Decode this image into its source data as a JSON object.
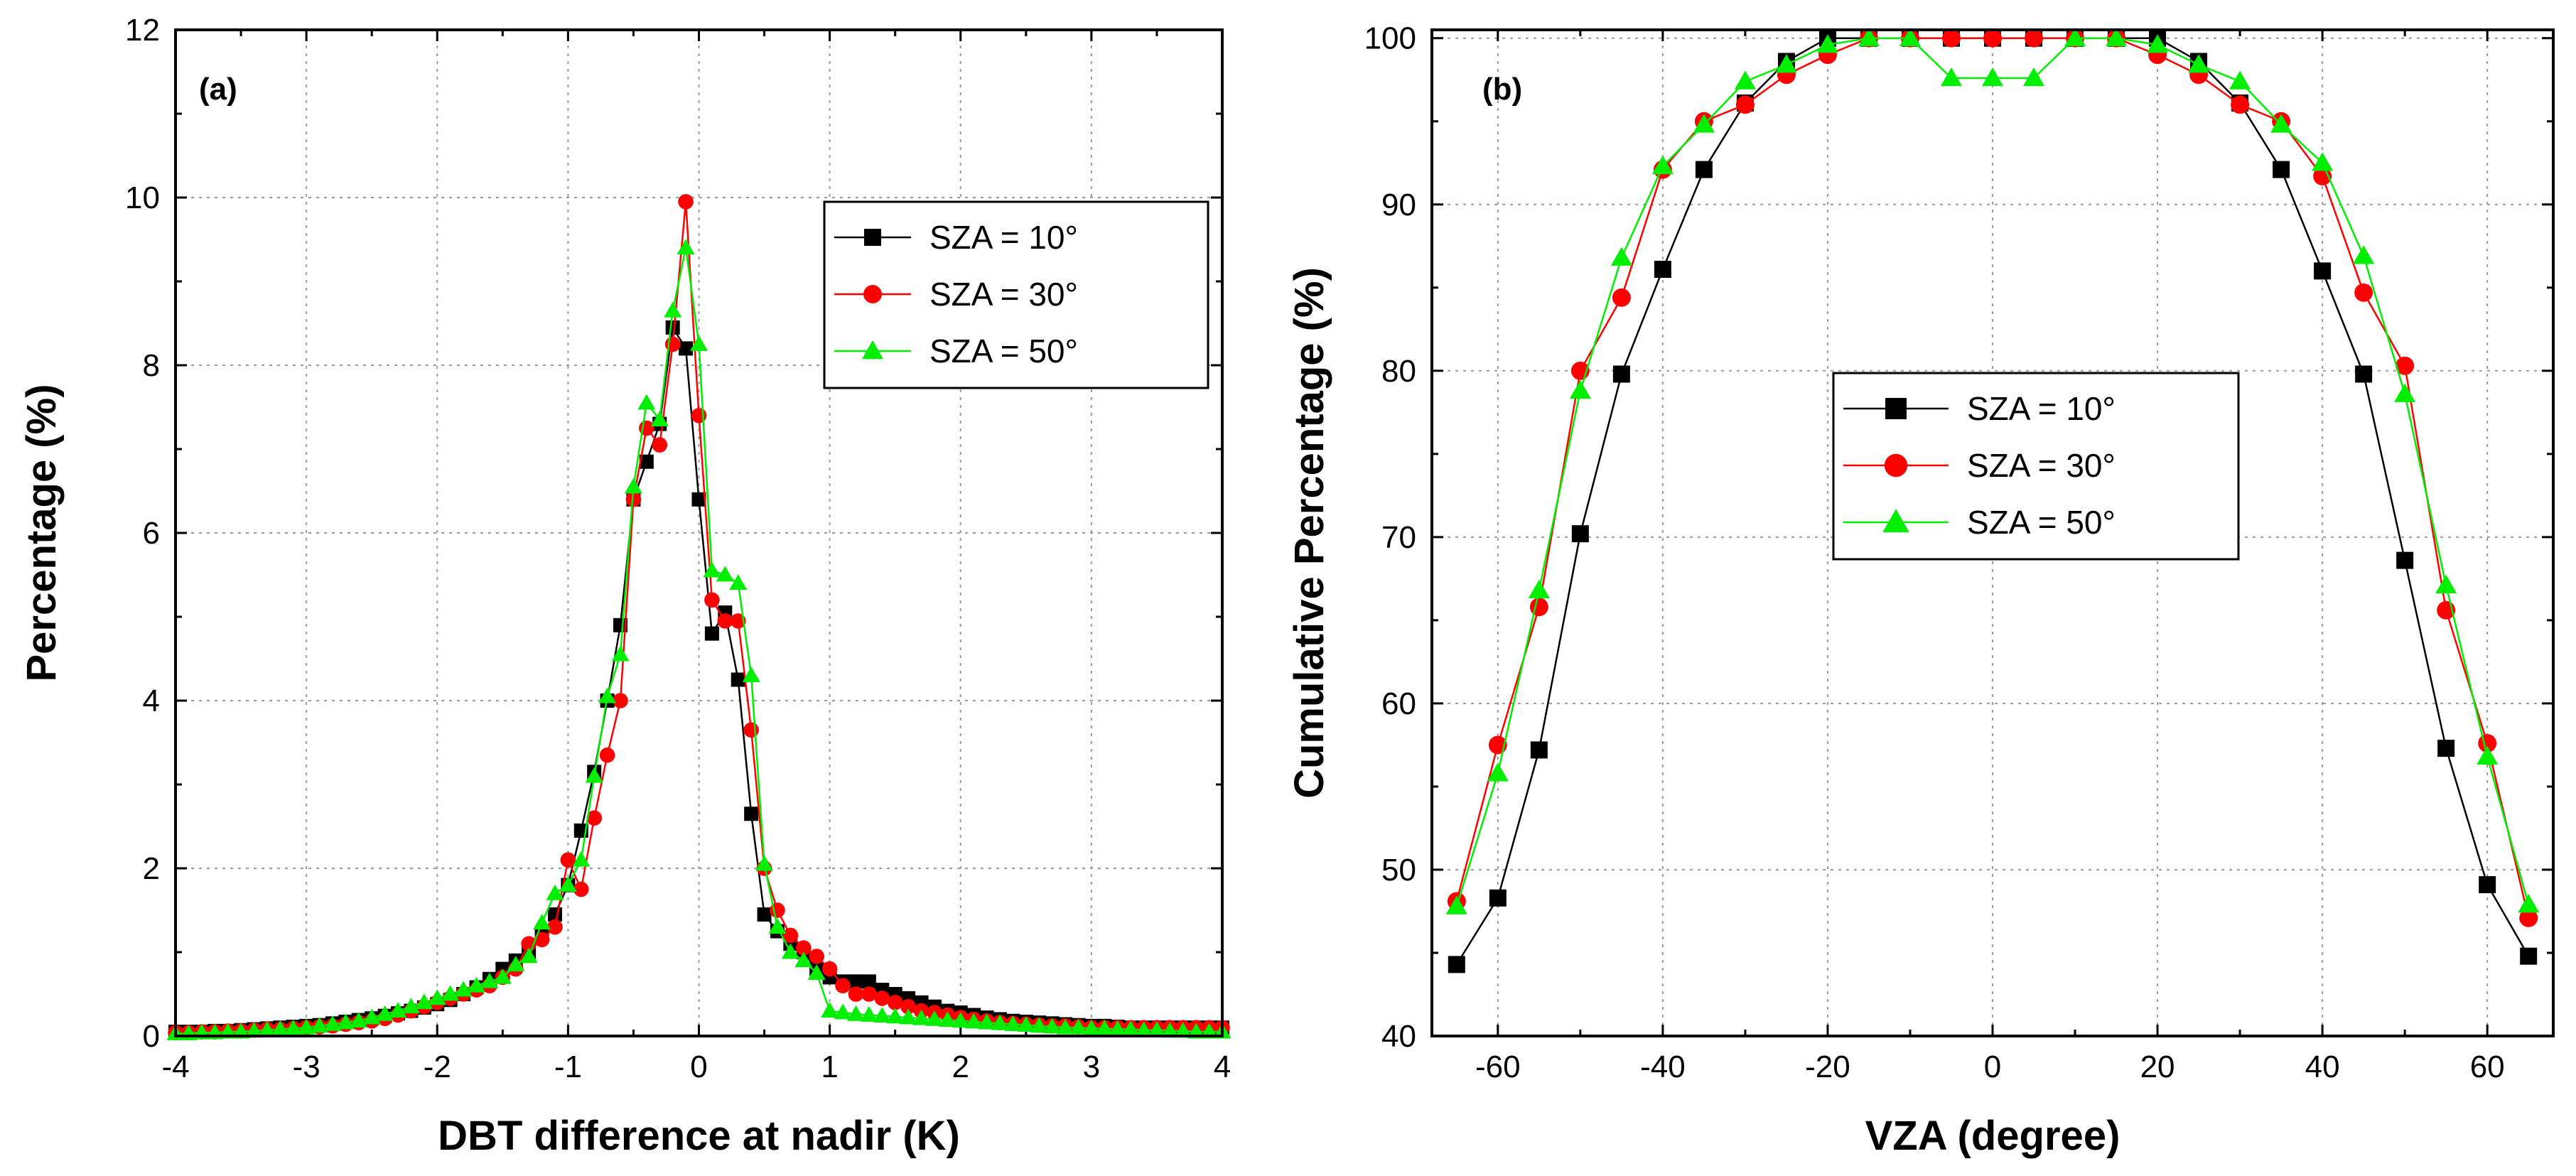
{
  "chart_data": [
    {
      "type": "line",
      "panel_label": "(a)",
      "xlabel": "DBT difference at nadir (K)",
      "ylabel": "Percentage (%)",
      "xlim": [
        -4,
        4
      ],
      "ylim": [
        0,
        12
      ],
      "xticks": [
        -4,
        -3,
        -2,
        -1,
        0,
        1,
        2,
        3,
        4
      ],
      "yticks": [
        0,
        2,
        4,
        6,
        8,
        10,
        12
      ],
      "xtick_labels": [
        "-4",
        "-3",
        "-2",
        "-1",
        "0",
        "1",
        "2",
        "3",
        "4"
      ],
      "ytick_labels": [
        "0",
        "2",
        "4",
        "6",
        "8",
        "10",
        "12"
      ],
      "grid": true,
      "legend_position": "upper-right",
      "series": [
        {
          "name": "SZA = 10°",
          "color": "#000000",
          "marker": "square",
          "x": [
            -4.0,
            -3.9,
            -3.8,
            -3.7,
            -3.6,
            -3.5,
            -3.4,
            -3.3,
            -3.2,
            -3.1,
            -3.0,
            -2.9,
            -2.8,
            -2.7,
            -2.6,
            -2.5,
            -2.4,
            -2.3,
            -2.2,
            -2.1,
            -2.0,
            -1.9,
            -1.8,
            -1.7,
            -1.6,
            -1.5,
            -1.4,
            -1.3,
            -1.2,
            -1.1,
            -1.0,
            -0.9,
            -0.8,
            -0.7,
            -0.6,
            -0.5,
            -0.4,
            -0.3,
            -0.2,
            -0.1,
            0.0,
            0.1,
            0.2,
            0.3,
            0.4,
            0.5,
            0.6,
            0.7,
            0.8,
            0.9,
            1.0,
            1.1,
            1.2,
            1.3,
            1.4,
            1.5,
            1.6,
            1.7,
            1.8,
            1.9,
            2.0,
            2.1,
            2.2,
            2.3,
            2.4,
            2.5,
            2.6,
            2.7,
            2.8,
            2.9,
            3.0,
            3.1,
            3.2,
            3.3,
            3.4,
            3.5,
            3.6,
            3.7,
            3.8,
            3.9,
            4.0
          ],
          "y": [
            0.05,
            0.05,
            0.05,
            0.06,
            0.06,
            0.07,
            0.08,
            0.09,
            0.1,
            0.11,
            0.12,
            0.13,
            0.15,
            0.17,
            0.19,
            0.21,
            0.24,
            0.27,
            0.3,
            0.34,
            0.38,
            0.43,
            0.5,
            0.58,
            0.68,
            0.8,
            0.9,
            1.0,
            1.2,
            1.45,
            1.8,
            2.45,
            3.15,
            4.0,
            4.9,
            6.4,
            6.85,
            7.3,
            8.45,
            8.2,
            6.4,
            4.8,
            5.05,
            4.25,
            2.65,
            1.45,
            1.25,
            1.1,
            1.0,
            0.8,
            0.7,
            0.65,
            0.65,
            0.65,
            0.55,
            0.5,
            0.45,
            0.4,
            0.35,
            0.3,
            0.28,
            0.25,
            0.22,
            0.2,
            0.18,
            0.17,
            0.16,
            0.15,
            0.14,
            0.13,
            0.12,
            0.12,
            0.11,
            0.1,
            0.1,
            0.1,
            0.1,
            0.1,
            0.1,
            0.1,
            0.1
          ]
        },
        {
          "name": "SZA = 30°",
          "color": "#ff0000",
          "marker": "circle",
          "x": [
            -4.0,
            -3.9,
            -3.8,
            -3.7,
            -3.6,
            -3.5,
            -3.4,
            -3.3,
            -3.2,
            -3.1,
            -3.0,
            -2.9,
            -2.8,
            -2.7,
            -2.6,
            -2.5,
            -2.4,
            -2.3,
            -2.2,
            -2.1,
            -2.0,
            -1.9,
            -1.8,
            -1.7,
            -1.6,
            -1.5,
            -1.4,
            -1.3,
            -1.2,
            -1.1,
            -1.0,
            -0.9,
            -0.8,
            -0.7,
            -0.6,
            -0.5,
            -0.4,
            -0.3,
            -0.2,
            -0.1,
            0.0,
            0.1,
            0.2,
            0.3,
            0.4,
            0.5,
            0.6,
            0.7,
            0.8,
            0.9,
            1.0,
            1.1,
            1.2,
            1.3,
            1.4,
            1.5,
            1.6,
            1.7,
            1.8,
            1.9,
            2.0,
            2.1,
            2.2,
            2.3,
            2.4,
            2.5,
            2.6,
            2.7,
            2.8,
            2.9,
            3.0,
            3.1,
            3.2,
            3.3,
            3.4,
            3.5,
            3.6,
            3.7,
            3.8,
            3.9,
            4.0
          ],
          "y": [
            0.04,
            0.04,
            0.05,
            0.05,
            0.06,
            0.06,
            0.07,
            0.08,
            0.08,
            0.09,
            0.1,
            0.11,
            0.12,
            0.14,
            0.16,
            0.18,
            0.21,
            0.25,
            0.3,
            0.35,
            0.4,
            0.45,
            0.5,
            0.55,
            0.6,
            0.7,
            0.8,
            1.1,
            1.15,
            1.3,
            2.1,
            1.75,
            2.6,
            3.35,
            4.0,
            6.4,
            7.25,
            7.05,
            8.25,
            9.95,
            7.4,
            5.2,
            4.95,
            4.95,
            3.65,
            2.0,
            1.5,
            1.2,
            1.05,
            0.95,
            0.8,
            0.6,
            0.5,
            0.5,
            0.45,
            0.4,
            0.35,
            0.3,
            0.28,
            0.25,
            0.22,
            0.2,
            0.18,
            0.16,
            0.15,
            0.14,
            0.13,
            0.12,
            0.12,
            0.11,
            0.1,
            0.1,
            0.1,
            0.1,
            0.1,
            0.1,
            0.1,
            0.1,
            0.1,
            0.1,
            0.1
          ]
        },
        {
          "name": "SZA = 50°",
          "color": "#00ee00",
          "marker": "triangle",
          "x": [
            -4.0,
            -3.9,
            -3.8,
            -3.7,
            -3.6,
            -3.5,
            -3.4,
            -3.3,
            -3.2,
            -3.1,
            -3.0,
            -2.9,
            -2.8,
            -2.7,
            -2.6,
            -2.5,
            -2.4,
            -2.3,
            -2.2,
            -2.1,
            -2.0,
            -1.9,
            -1.8,
            -1.7,
            -1.6,
            -1.5,
            -1.4,
            -1.3,
            -1.2,
            -1.1,
            -1.0,
            -0.9,
            -0.8,
            -0.7,
            -0.6,
            -0.5,
            -0.4,
            -0.3,
            -0.2,
            -0.1,
            0.0,
            0.1,
            0.2,
            0.3,
            0.4,
            0.5,
            0.6,
            0.7,
            0.8,
            0.9,
            1.0,
            1.1,
            1.2,
            1.3,
            1.4,
            1.5,
            1.6,
            1.7,
            1.8,
            1.9,
            2.0,
            2.1,
            2.2,
            2.3,
            2.4,
            2.5,
            2.6,
            2.7,
            2.8,
            2.9,
            3.0,
            3.1,
            3.2,
            3.3,
            3.4,
            3.5,
            3.6,
            3.7,
            3.8,
            3.9,
            4.0
          ],
          "y": [
            0.03,
            0.03,
            0.04,
            0.04,
            0.05,
            0.05,
            0.06,
            0.07,
            0.08,
            0.09,
            0.1,
            0.12,
            0.14,
            0.16,
            0.18,
            0.22,
            0.26,
            0.3,
            0.35,
            0.4,
            0.45,
            0.5,
            0.55,
            0.6,
            0.65,
            0.7,
            0.85,
            0.95,
            1.35,
            1.7,
            1.8,
            2.1,
            3.1,
            4.05,
            4.55,
            6.55,
            7.55,
            7.35,
            8.65,
            9.4,
            8.25,
            5.55,
            5.5,
            5.4,
            4.3,
            2.05,
            1.3,
            1.0,
            0.9,
            0.75,
            0.3,
            0.28,
            0.26,
            0.25,
            0.24,
            0.23,
            0.22,
            0.21,
            0.2,
            0.19,
            0.18,
            0.17,
            0.16,
            0.15,
            0.14,
            0.13,
            0.12,
            0.11,
            0.1,
            0.1,
            0.09,
            0.09,
            0.08,
            0.08,
            0.07,
            0.07,
            0.06,
            0.06,
            0.05,
            0.05,
            0.05
          ]
        }
      ]
    },
    {
      "type": "line",
      "panel_label": "(b)",
      "xlabel": "VZA (degree)",
      "ylabel": "Cumulative Percentage (%)",
      "xlim": [
        -68,
        68
      ],
      "ylim": [
        40,
        100.5
      ],
      "xticks": [
        -60,
        -40,
        -20,
        0,
        20,
        40,
        60
      ],
      "yticks": [
        40,
        50,
        60,
        70,
        80,
        90,
        100
      ],
      "xtick_labels": [
        "-60",
        "-40",
        "-20",
        "0",
        "20",
        "40",
        "60"
      ],
      "ytick_labels": [
        "40",
        "50",
        "60",
        "70",
        "80",
        "90",
        "100"
      ],
      "grid": true,
      "legend_position": "middle-center",
      "series": [
        {
          "name": "SZA = 10°",
          "color": "#000000",
          "marker": "square",
          "x": [
            -65,
            -60,
            -55,
            -50,
            -45,
            -40,
            -35,
            -30,
            -25,
            -20,
            -15,
            -10,
            -5,
            0,
            5,
            10,
            15,
            20,
            25,
            30,
            35,
            40,
            45,
            50,
            55,
            60,
            65
          ],
          "y": [
            44.3,
            48.3,
            57.2,
            70.2,
            79.8,
            86.1,
            92.1,
            96.1,
            98.6,
            100,
            100,
            100,
            100,
            100,
            100,
            100,
            100,
            100,
            98.6,
            96.1,
            92.1,
            86.0,
            79.8,
            68.6,
            57.3,
            49.1,
            44.8
          ]
        },
        {
          "name": "SZA = 30°",
          "color": "#ff0000",
          "marker": "circle",
          "x": [
            -65,
            -60,
            -55,
            -50,
            -45,
            -40,
            -35,
            -30,
            -25,
            -20,
            -15,
            -10,
            -5,
            0,
            5,
            10,
            15,
            20,
            25,
            30,
            35,
            40,
            45,
            50,
            55,
            60,
            65
          ],
          "y": [
            48.1,
            57.5,
            65.8,
            80.0,
            84.4,
            92.1,
            95.0,
            96.0,
            97.8,
            99.0,
            100,
            100,
            100,
            100,
            100,
            100,
            100,
            99.0,
            97.8,
            96.0,
            95.0,
            91.7,
            84.7,
            80.3,
            65.6,
            57.6,
            47.1
          ]
        },
        {
          "name": "SZA = 50°",
          "color": "#00ee00",
          "marker": "triangle",
          "x": [
            -65,
            -60,
            -55,
            -50,
            -45,
            -40,
            -35,
            -30,
            -25,
            -20,
            -15,
            -10,
            -5,
            0,
            5,
            10,
            15,
            20,
            25,
            30,
            35,
            40,
            45,
            50,
            55,
            60,
            65
          ],
          "y": [
            47.8,
            55.8,
            66.8,
            78.8,
            86.8,
            92.3,
            94.8,
            97.4,
            98.4,
            99.6,
            100,
            100,
            97.6,
            97.6,
            97.6,
            100,
            100,
            99.6,
            98.4,
            97.4,
            94.8,
            92.5,
            86.9,
            78.6,
            67.1,
            56.8,
            47.9
          ]
        }
      ]
    }
  ]
}
